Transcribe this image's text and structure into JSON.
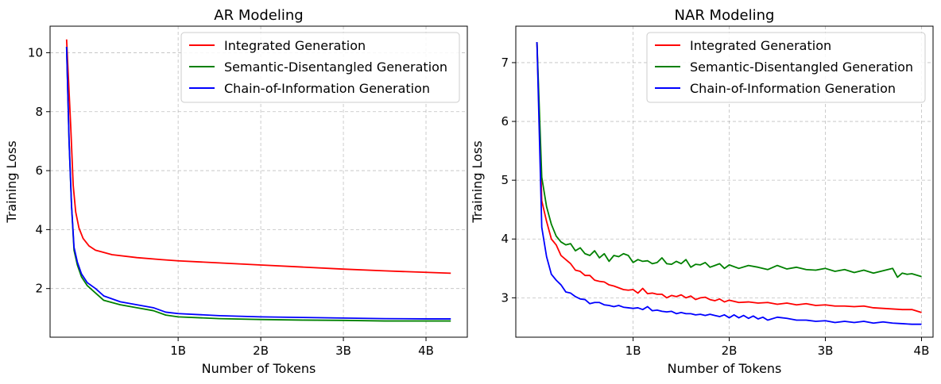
{
  "colors": {
    "integrated": "#ff0000",
    "semantic": "#008000",
    "chain": "#0000ff"
  },
  "chart_data": [
    {
      "type": "line",
      "title": "AR Modeling",
      "xlabel": "Number of Tokens",
      "ylabel": "Training Loss",
      "xlim": [
        -0.55,
        4.5
      ],
      "ylim": [
        0.35,
        10.9
      ],
      "xticks": [
        1,
        2,
        3,
        4
      ],
      "xtick_labels": [
        "1B",
        "2B",
        "3B",
        "4B"
      ],
      "yticks": [
        2,
        4,
        6,
        8,
        10
      ],
      "ytick_labels": [
        "2",
        "4",
        "6",
        "8",
        "10"
      ],
      "grid": true,
      "legend_position": "upper-right",
      "series": [
        {
          "name": "Integrated Generation",
          "color": "#ff0000",
          "x": [
            -0.35,
            -0.3,
            -0.27,
            -0.24,
            -0.2,
            -0.15,
            -0.08,
            0.0,
            0.2,
            0.5,
            0.8,
            1.0,
            1.5,
            2.0,
            2.5,
            3.0,
            3.5,
            4.0,
            4.3
          ],
          "y": [
            10.45,
            7.5,
            5.5,
            4.6,
            4.05,
            3.7,
            3.45,
            3.3,
            3.15,
            3.05,
            2.98,
            2.94,
            2.87,
            2.8,
            2.73,
            2.66,
            2.6,
            2.55,
            2.52
          ]
        },
        {
          "name": "Semantic-Disentangled Generation",
          "color": "#008000",
          "x": [
            -0.35,
            -0.32,
            -0.29,
            -0.26,
            -0.22,
            -0.17,
            -0.1,
            0.0,
            0.1,
            0.3,
            0.5,
            0.7,
            0.85,
            1.0,
            1.5,
            2.0,
            2.5,
            3.0,
            3.5,
            4.0,
            4.3
          ],
          "y": [
            10.2,
            7.0,
            4.8,
            3.3,
            2.8,
            2.4,
            2.1,
            1.85,
            1.6,
            1.45,
            1.35,
            1.25,
            1.1,
            1.04,
            0.98,
            0.95,
            0.93,
            0.92,
            0.9,
            0.9,
            0.9
          ]
        },
        {
          "name": "Chain-of-Information Generation",
          "color": "#0000ff",
          "x": [
            -0.35,
            -0.32,
            -0.29,
            -0.26,
            -0.22,
            -0.17,
            -0.1,
            0.0,
            0.1,
            0.3,
            0.5,
            0.7,
            0.85,
            1.0,
            1.5,
            2.0,
            2.5,
            3.0,
            3.5,
            4.0,
            4.3
          ],
          "y": [
            10.2,
            7.0,
            4.8,
            3.4,
            2.9,
            2.5,
            2.2,
            2.0,
            1.75,
            1.55,
            1.45,
            1.35,
            1.2,
            1.15,
            1.08,
            1.04,
            1.02,
            1.0,
            0.98,
            0.97,
            0.97
          ]
        }
      ]
    },
    {
      "type": "line",
      "title": "NAR Modeling",
      "xlabel": "Number of Tokens",
      "ylabel": "Training Loss",
      "xlim": [
        -0.22,
        4.12
      ],
      "ylim": [
        2.33,
        7.62
      ],
      "xticks": [
        1,
        2,
        3,
        4
      ],
      "xtick_labels": [
        "1B",
        "2B",
        "3B",
        "4B"
      ],
      "yticks": [
        3,
        4,
        5,
        6,
        7
      ],
      "ytick_labels": [
        "3",
        "4",
        "5",
        "6",
        "7"
      ],
      "grid": true,
      "legend_position": "upper-right",
      "series": [
        {
          "name": "Integrated Generation",
          "color": "#ff0000",
          "x": [
            0.0,
            0.05,
            0.1,
            0.15,
            0.2,
            0.25,
            0.3,
            0.35,
            0.4,
            0.45,
            0.5,
            0.55,
            0.6,
            0.65,
            0.7,
            0.75,
            0.8,
            0.85,
            0.9,
            0.95,
            1.0,
            1.05,
            1.1,
            1.15,
            1.2,
            1.25,
            1.3,
            1.35,
            1.4,
            1.45,
            1.5,
            1.55,
            1.6,
            1.65,
            1.7,
            1.75,
            1.8,
            1.85,
            1.9,
            1.95,
            2.0,
            2.1,
            2.2,
            2.3,
            2.4,
            2.5,
            2.6,
            2.7,
            2.8,
            2.9,
            3.0,
            3.1,
            3.2,
            3.3,
            3.4,
            3.5,
            3.6,
            3.7,
            3.8,
            3.9,
            4.0
          ],
          "y": [
            7.35,
            4.65,
            4.3,
            4.0,
            3.9,
            3.72,
            3.65,
            3.58,
            3.47,
            3.45,
            3.38,
            3.38,
            3.3,
            3.28,
            3.27,
            3.22,
            3.2,
            3.17,
            3.14,
            3.13,
            3.14,
            3.08,
            3.16,
            3.07,
            3.08,
            3.06,
            3.06,
            3.0,
            3.04,
            3.02,
            3.05,
            3.0,
            3.03,
            2.97,
            3.0,
            3.01,
            2.97,
            2.95,
            2.98,
            2.93,
            2.96,
            2.92,
            2.93,
            2.91,
            2.92,
            2.89,
            2.91,
            2.88,
            2.9,
            2.87,
            2.88,
            2.86,
            2.86,
            2.85,
            2.86,
            2.83,
            2.82,
            2.81,
            2.8,
            2.8,
            2.75
          ]
        },
        {
          "name": "Semantic-Disentangled Generation",
          "color": "#008000",
          "x": [
            0.0,
            0.05,
            0.1,
            0.15,
            0.2,
            0.25,
            0.3,
            0.35,
            0.4,
            0.45,
            0.5,
            0.55,
            0.6,
            0.65,
            0.7,
            0.75,
            0.8,
            0.85,
            0.9,
            0.95,
            1.0,
            1.05,
            1.1,
            1.15,
            1.2,
            1.25,
            1.3,
            1.35,
            1.4,
            1.45,
            1.5,
            1.55,
            1.6,
            1.65,
            1.7,
            1.75,
            1.8,
            1.85,
            1.9,
            1.95,
            2.0,
            2.1,
            2.2,
            2.3,
            2.4,
            2.5,
            2.6,
            2.7,
            2.8,
            2.9,
            3.0,
            3.1,
            3.2,
            3.3,
            3.4,
            3.5,
            3.6,
            3.7,
            3.75,
            3.8,
            3.85,
            3.9,
            4.0
          ],
          "y": [
            7.35,
            5.05,
            4.55,
            4.25,
            4.05,
            3.95,
            3.9,
            3.92,
            3.8,
            3.85,
            3.75,
            3.72,
            3.8,
            3.68,
            3.75,
            3.62,
            3.72,
            3.7,
            3.75,
            3.72,
            3.6,
            3.65,
            3.62,
            3.63,
            3.58,
            3.6,
            3.68,
            3.58,
            3.57,
            3.62,
            3.58,
            3.65,
            3.52,
            3.57,
            3.56,
            3.6,
            3.52,
            3.55,
            3.58,
            3.5,
            3.56,
            3.5,
            3.55,
            3.52,
            3.48,
            3.55,
            3.49,
            3.52,
            3.48,
            3.47,
            3.5,
            3.45,
            3.48,
            3.43,
            3.47,
            3.42,
            3.46,
            3.5,
            3.35,
            3.42,
            3.4,
            3.41,
            3.36
          ]
        },
        {
          "name": "Chain-of-Information Generation",
          "color": "#0000ff",
          "x": [
            0.0,
            0.05,
            0.1,
            0.15,
            0.2,
            0.25,
            0.3,
            0.35,
            0.4,
            0.45,
            0.5,
            0.55,
            0.6,
            0.65,
            0.7,
            0.75,
            0.8,
            0.85,
            0.9,
            0.95,
            1.0,
            1.05,
            1.1,
            1.15,
            1.2,
            1.25,
            1.3,
            1.35,
            1.4,
            1.45,
            1.5,
            1.55,
            1.6,
            1.65,
            1.7,
            1.75,
            1.8,
            1.85,
            1.9,
            1.95,
            2.0,
            2.05,
            2.1,
            2.15,
            2.2,
            2.25,
            2.3,
            2.35,
            2.4,
            2.5,
            2.6,
            2.7,
            2.8,
            2.9,
            3.0,
            3.1,
            3.2,
            3.3,
            3.4,
            3.5,
            3.6,
            3.7,
            3.8,
            3.9,
            4.0
          ],
          "y": [
            7.35,
            4.2,
            3.7,
            3.4,
            3.3,
            3.22,
            3.1,
            3.08,
            3.02,
            2.98,
            2.97,
            2.9,
            2.92,
            2.92,
            2.88,
            2.87,
            2.85,
            2.87,
            2.84,
            2.83,
            2.82,
            2.83,
            2.8,
            2.85,
            2.78,
            2.79,
            2.77,
            2.76,
            2.77,
            2.73,
            2.75,
            2.73,
            2.73,
            2.71,
            2.72,
            2.7,
            2.72,
            2.7,
            2.68,
            2.71,
            2.66,
            2.71,
            2.66,
            2.7,
            2.65,
            2.69,
            2.64,
            2.67,
            2.62,
            2.67,
            2.65,
            2.62,
            2.62,
            2.6,
            2.61,
            2.58,
            2.6,
            2.58,
            2.6,
            2.57,
            2.59,
            2.57,
            2.56,
            2.55,
            2.55
          ]
        }
      ]
    }
  ]
}
